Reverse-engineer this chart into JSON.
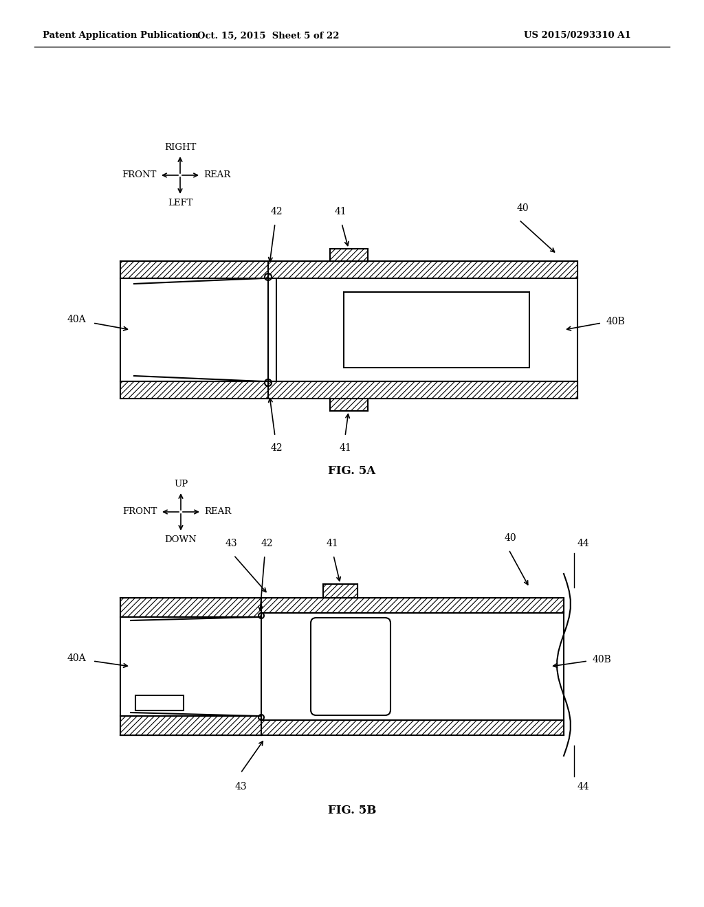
{
  "bg_color": "#ffffff",
  "lc": "#000000",
  "header_left": "Patent Application Publication",
  "header_mid": "Oct. 15, 2015  Sheet 5 of 22",
  "header_right": "US 2015/0293310 A1",
  "fig5a_label": "FIG. 5A",
  "fig5b_label": "FIG. 5B",
  "lw": 1.5
}
